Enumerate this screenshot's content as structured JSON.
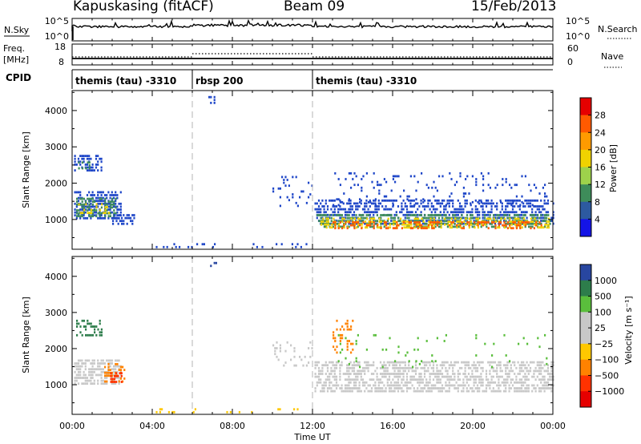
{
  "header": {
    "station": "Kapuskasing (fitACF)",
    "beam": "Beam 09",
    "date": "15/Feb/2013"
  },
  "noise_panel": {
    "left_label": "N.Sky",
    "left_ticks": [
      "10^5",
      "10^0"
    ],
    "right_ticks": [
      "10^5",
      "10^0"
    ],
    "right_label": "N.Search"
  },
  "freq_panel": {
    "left_label_1": "Freq.",
    "left_label_2": "[MHz]",
    "left_ticks": [
      "18",
      "8"
    ],
    "right_ticks": [
      "60",
      "0"
    ],
    "right_label": "Nave"
  },
  "cpid": {
    "label": "CPID",
    "segments": [
      {
        "start_hour": 0,
        "end_hour": 6,
        "label": "themis (tau) -3310"
      },
      {
        "start_hour": 6,
        "end_hour": 12,
        "label": "rbsp 200"
      },
      {
        "start_hour": 12,
        "end_hour": 24,
        "label": "themis (tau) -3310"
      }
    ]
  },
  "power_colorbar": {
    "label": "Power [dB]",
    "ticks": [
      "28",
      "24",
      "20",
      "16",
      "12",
      "8",
      "4"
    ],
    "colors": [
      "#e60000",
      "#ff5a00",
      "#ff9b00",
      "#f0d200",
      "#9ed24b",
      "#3e8c5a",
      "#2d5aa0",
      "#1414e6"
    ]
  },
  "velocity_colorbar": {
    "label": "Velocity [m s⁻¹]",
    "ticks": [
      "1000",
      "500",
      "100",
      "25",
      "−25",
      "−100",
      "−500",
      "−1000"
    ],
    "colors": [
      "#2846a0",
      "#2d7d4b",
      "#5abe3c",
      "#c8c8c8",
      "#c8c8c8",
      "#ffc800",
      "#ff8200",
      "#ff3200",
      "#e60000"
    ]
  },
  "chart_data": [
    {
      "type": "heatmap",
      "name": "power",
      "ylabel": "Slant Range [km]",
      "x_unit": "hour UT",
      "xlim": [
        0,
        24
      ],
      "ylim": [
        180,
        4550
      ],
      "yticks": [
        1000,
        2000,
        3000,
        4000
      ],
      "regions": [
        {
          "x": [
            0.1,
            2.45
          ],
          "y": [
            1000,
            1780
          ],
          "color": "#1e46c8",
          "density": 0.55
        },
        {
          "x": [
            0.2,
            2.2
          ],
          "y": [
            1120,
            1600
          ],
          "color": "#3e8c5a",
          "density": 0.55
        },
        {
          "x": [
            0.3,
            1.9
          ],
          "y": [
            1200,
            1450
          ],
          "color": "#f0d200",
          "density": 0.35
        },
        {
          "x": [
            0.1,
            1.5
          ],
          "y": [
            2350,
            2780
          ],
          "color": "#1e46c8",
          "density": 0.5
        },
        {
          "x": [
            0.3,
            0.9
          ],
          "y": [
            2380,
            2600
          ],
          "color": "#3e8c5a",
          "density": 0.4
        },
        {
          "x": [
            2.0,
            3.1
          ],
          "y": [
            850,
            1150
          ],
          "color": "#1e46c8",
          "density": 0.45
        },
        {
          "x": [
            12.1,
            24
          ],
          "y": [
            900,
            1550
          ],
          "color": "#1e46c8",
          "density": 0.5
        },
        {
          "x": [
            12.2,
            24
          ],
          "y": [
            800,
            1150
          ],
          "color": "#3e8c5a",
          "density": 0.55
        },
        {
          "x": [
            12.4,
            23.8
          ],
          "y": [
            800,
            1050
          ],
          "color": "#f0d200",
          "density": 0.45
        },
        {
          "x": [
            13.0,
            23.5
          ],
          "y": [
            780,
            950
          ],
          "color": "#ff5a00",
          "density": 0.35
        },
        {
          "x": [
            13.0,
            23.8
          ],
          "y": [
            1400,
            2300
          ],
          "color": "#1e46c8",
          "density": 0.1
        },
        {
          "x": [
            10.0,
            12.0
          ],
          "y": [
            1350,
            2200
          ],
          "color": "#1e46c8",
          "density": 0.1
        },
        {
          "x": [
            4.0,
            12.0
          ],
          "y": [
            200,
            350
          ],
          "color": "#1e46c8",
          "density": 0.12
        },
        {
          "x": [
            6.8,
            7.2
          ],
          "y": [
            4200,
            4400
          ],
          "color": "#1e46c8",
          "density": 0.2
        }
      ]
    },
    {
      "type": "heatmap",
      "name": "velocity",
      "ylabel": "Slant Range [km]",
      "xlabel": "Time UT",
      "x_unit": "hour UT",
      "xlim": [
        0,
        24
      ],
      "ylim": [
        180,
        4550
      ],
      "xticks": [
        "00:00",
        "04:00",
        "08:00",
        "12:00",
        "16:00",
        "20:00",
        "00:00"
      ],
      "yticks": [
        1000,
        2000,
        3000,
        4000
      ],
      "regions": [
        {
          "x": [
            0.1,
            2.45
          ],
          "y": [
            1050,
            1700
          ],
          "color": "#c8c8c8",
          "density": 0.6
        },
        {
          "x": [
            1.6,
            2.6
          ],
          "y": [
            1050,
            1600
          ],
          "color": "#ff8200",
          "density": 0.35
        },
        {
          "x": [
            1.9,
            2.5
          ],
          "y": [
            1100,
            1350
          ],
          "color": "#ff3200",
          "density": 0.4
        },
        {
          "x": [
            0.2,
            1.5
          ],
          "y": [
            2350,
            2800
          ],
          "color": "#2d7d4b",
          "density": 0.45
        },
        {
          "x": [
            12.1,
            24
          ],
          "y": [
            850,
            1650
          ],
          "color": "#c8c8c8",
          "density": 0.6
        },
        {
          "x": [
            13.0,
            14.0
          ],
          "y": [
            1900,
            2800
          ],
          "color": "#ff8200",
          "density": 0.25
        },
        {
          "x": [
            13.0,
            23.8
          ],
          "y": [
            1500,
            2400
          ],
          "color": "#5abe3c",
          "density": 0.04
        },
        {
          "x": [
            10.0,
            12.0
          ],
          "y": [
            1500,
            2200
          ],
          "color": "#c8c8c8",
          "density": 0.15
        },
        {
          "x": [
            4.0,
            12.0
          ],
          "y": [
            200,
            350
          ],
          "color": "#ffc800",
          "density": 0.12
        },
        {
          "x": [
            6.8,
            7.2
          ],
          "y": [
            4200,
            4400
          ],
          "color": "#2846a0",
          "density": 0.2
        }
      ]
    }
  ]
}
